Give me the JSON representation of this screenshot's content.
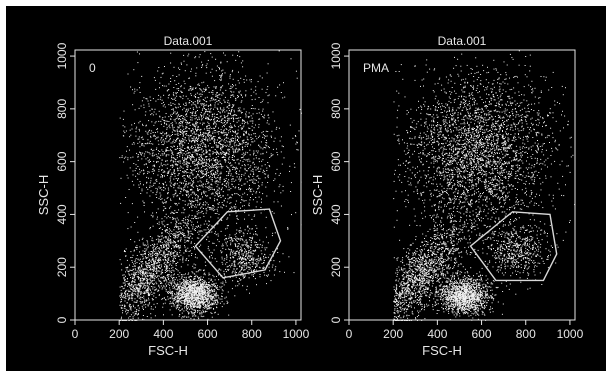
{
  "chart_data": [
    {
      "type": "scatter",
      "title": "Data.001",
      "annotation": "0",
      "xlabel": "FSC-H",
      "ylabel": "SSC-H",
      "xlim": [
        0,
        1023
      ],
      "ylim": [
        0,
        1023
      ],
      "xticks": [
        0,
        200,
        400,
        600,
        800,
        1000
      ],
      "yticks": [
        0,
        200,
        400,
        600,
        800,
        1000
      ],
      "grid": false,
      "populations": [
        {
          "description": "large diffuse cluster",
          "center": [
            580,
            650
          ],
          "spread": [
            170,
            150
          ]
        },
        {
          "description": "dense cluster",
          "center": [
            540,
            100
          ],
          "spread": [
            55,
            35
          ]
        },
        {
          "description": "gated cluster",
          "center": [
            760,
            240
          ],
          "spread": [
            70,
            50
          ]
        },
        {
          "description": "debris band",
          "center": [
            330,
            180
          ],
          "spread": [
            110,
            110
          ]
        }
      ],
      "gate_polygon": [
        [
          545,
          280
        ],
        [
          670,
          160
        ],
        [
          860,
          190
        ],
        [
          930,
          300
        ],
        [
          880,
          420
        ],
        [
          690,
          410
        ]
      ]
    },
    {
      "type": "scatter",
      "title": "Data.001",
      "annotation": "PMA",
      "xlabel": "FSC-H",
      "ylabel": "SSC-H",
      "xlim": [
        0,
        1023
      ],
      "ylim": [
        0,
        1023
      ],
      "xticks": [
        0,
        200,
        400,
        600,
        800,
        1000
      ],
      "yticks": [
        0,
        200,
        400,
        600,
        800,
        1000
      ],
      "grid": false,
      "populations": [
        {
          "description": "large diffuse cluster",
          "center": [
            580,
            640
          ],
          "spread": [
            170,
            150
          ]
        },
        {
          "description": "dense cluster",
          "center": [
            520,
            95
          ],
          "spread": [
            55,
            35
          ]
        },
        {
          "description": "gated cluster",
          "center": [
            760,
            260
          ],
          "spread": [
            70,
            50
          ]
        },
        {
          "description": "debris band",
          "center": [
            320,
            170
          ],
          "spread": [
            110,
            110
          ]
        }
      ],
      "gate_polygon": [
        [
          550,
          280
        ],
        [
          665,
          150
        ],
        [
          880,
          150
        ],
        [
          940,
          250
        ],
        [
          910,
          400
        ],
        [
          740,
          410
        ]
      ]
    }
  ],
  "colors": {
    "background": "#000000",
    "points": "#f2f2f2",
    "axes": "#e6e6e6",
    "gate": "#d8d8d8"
  }
}
